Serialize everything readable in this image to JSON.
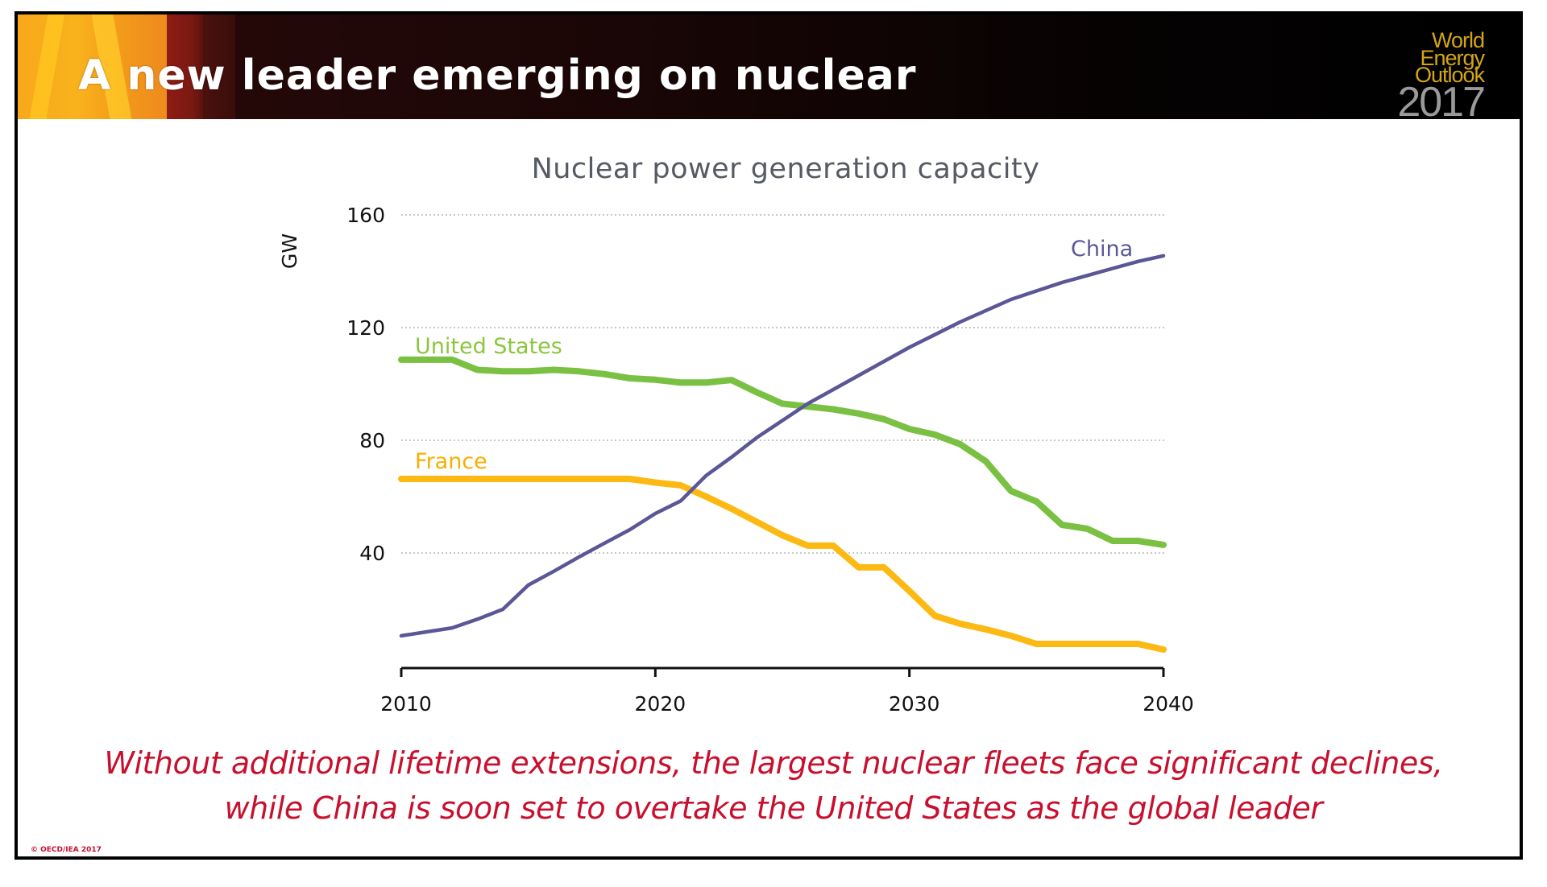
{
  "slide": {
    "title": "A new leader emerging on nuclear",
    "logo": {
      "line1": "World",
      "line2": "Energy",
      "line3": "Outlook",
      "year": "2017"
    },
    "caption_line1": "Without additional lifetime extensions, the largest nuclear fleets face significant declines,",
    "caption_line2": "while China is soon set to overtake the United States as the global leader",
    "copyright": "© OECD/IEA 2017",
    "colors": {
      "banner_orange": "#f7a81b",
      "banner_red": "#8e1c14",
      "caption_red": "#c8102e",
      "logo_gold": "#d4a614"
    }
  },
  "chart_data": {
    "type": "line",
    "title": "Nuclear power generation capacity",
    "xlabel": "",
    "ylabel": "GW",
    "xlim": [
      2010,
      2040
    ],
    "ylim": [
      0,
      160
    ],
    "x_ticks": [
      "2010",
      "2020",
      "2030",
      "2040"
    ],
    "y_ticks": [
      "40",
      "80",
      "120",
      "160"
    ],
    "grid": "horizontal-dotted",
    "legend": "inline-labels",
    "x": [
      2010,
      2011,
      2012,
      2013,
      2014,
      2015,
      2016,
      2017,
      2018,
      2019,
      2020,
      2021,
      2022,
      2023,
      2024,
      2025,
      2026,
      2027,
      2028,
      2029,
      2030,
      2031,
      2032,
      2033,
      2034,
      2035,
      2036,
      2037,
      2038,
      2039,
      2040
    ],
    "series": [
      {
        "name": "China",
        "color": "#5b5797",
        "values": [
          10.6,
          12,
          13.4,
          16.5,
          20,
          28.6,
          33.5,
          38.6,
          43.5,
          48.3,
          54,
          58.5,
          67.5,
          74,
          81,
          87,
          93,
          98,
          103,
          108,
          113,
          117.5,
          122,
          126,
          130,
          133,
          136,
          138.5,
          141,
          143.5,
          145.5
        ]
      },
      {
        "name": "United States",
        "color": "#7ac143",
        "label_color": "#8cc63f",
        "values": [
          108.6,
          108.6,
          108.6,
          105,
          104.5,
          104.5,
          105,
          104.5,
          103.5,
          102,
          101.5,
          100.5,
          100.5,
          101.4,
          97,
          93,
          92,
          91,
          89.5,
          87.5,
          84,
          82,
          78.6,
          72.6,
          62,
          58.3,
          50,
          48.6,
          44.3,
          44.3,
          42.9
        ]
      },
      {
        "name": "France",
        "color": "#fdb913",
        "label_color": "#f5b000",
        "values": [
          66.3,
          66.3,
          66.3,
          66.3,
          66.3,
          66.3,
          66.3,
          66.3,
          66.3,
          66.3,
          65,
          64,
          60,
          55.7,
          51,
          46.3,
          42.6,
          42.6,
          34.9,
          34.9,
          26.5,
          17.7,
          14.9,
          12.9,
          10.6,
          7.7,
          7.7,
          7.7,
          7.7,
          7.7,
          5.7
        ]
      }
    ]
  }
}
